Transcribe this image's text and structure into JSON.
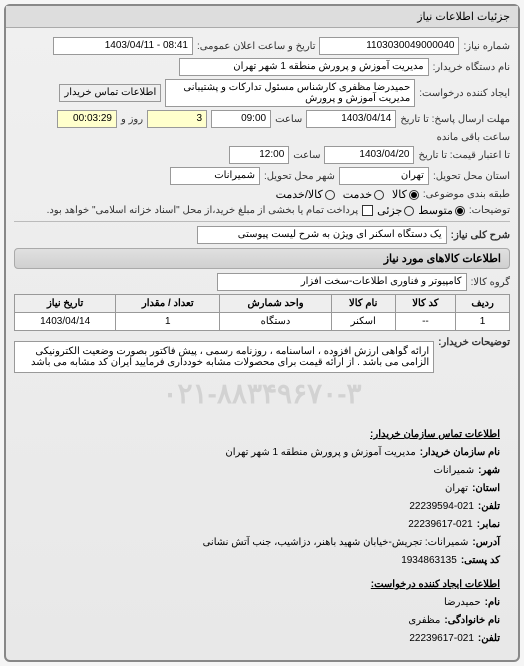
{
  "tabHeader": "جزئیات اطلاعات نیاز",
  "requestNumber": {
    "label": "شماره نیاز:",
    "value": "1103030049000040"
  },
  "announceDateTime": {
    "label": "تاریخ و ساعت اعلان عمومی:",
    "value": "08:41 - 1403/04/11"
  },
  "buyerOrg": {
    "label": "نام دستگاه خریدار:",
    "value": "مدیریت آموزش و پرورش منطقه 1 شهر تهران"
  },
  "requester": {
    "label": "ایجاد کننده درخواست:",
    "value": "حمیدرضا مظفری کارشناس مسئول تدارکات و پشتیبانی مدیریت آموزش و پرورش"
  },
  "contactBtn": "اطلاعات تماس خریدار",
  "deadlineSend": {
    "label": "مهلت ارسال پاسخ: تا تاریخ",
    "date": "1403/04/14",
    "timeLabel": "ساعت",
    "time": "09:00",
    "daysLabel": "روز و",
    "days": "3",
    "remLabel": "ساعت باقی مانده",
    "rem": "00:03:29"
  },
  "deadlineValid": {
    "label": "تا اعتبار قیمت: تا تاریخ",
    "date": "1403/04/20",
    "timeLabel": "ساعت",
    "time": "12:00"
  },
  "deliverLoc": {
    "label": "استان محل تحویل:",
    "value": "تهران"
  },
  "deliverCity": {
    "label": "شهر محل تحویل:",
    "value": "شمیرانات"
  },
  "budgetType": {
    "label": "طبقه بندی موضوعی:",
    "options": [
      "کالا",
      "خدمت",
      "کالا/خدمت"
    ],
    "selected": 0
  },
  "paymentNote": {
    "label": "توضیحات:",
    "chkLabel": "پرداخت تمام یا بخشی از مبلغ خرید،از محل \"اسناد خزانه اسلامی\" خواهد بود.",
    "radios": [
      "متوسط",
      "جزئی"
    ],
    "selected": 0
  },
  "needTitle": {
    "label": "شرح کلی نیاز:",
    "value": "یک دستگاه اسکنر ای ویژن به شرح لیست پیوستی"
  },
  "goodsInfoTitle": "اطلاعات کالاهای مورد نیاز",
  "goodsGroup": {
    "label": "گروه کالا:",
    "value": "کامپیوتر و فناوری اطلاعات-سخت افزار"
  },
  "table": {
    "headers": [
      "ردیف",
      "کد کالا",
      "نام کالا",
      "واحد شمارش",
      "تعداد / مقدار",
      "تاریخ نیاز"
    ],
    "rows": [
      [
        "1",
        "--",
        "اسکنر",
        "دستگاه",
        "1",
        "1403/04/14"
      ]
    ]
  },
  "buyerNote": {
    "label": "توضیحات خریدار:",
    "value": "ارائه گواهی ارزش افزوده ، اساسنامه ، روزنامه رسمی ، پیش فاکتور بصورت وضعیت الکترونیکی الزامی می باشد . از ارائه قیمت برای محصولات مشابه خودداری فرمایید ایران کد مشابه می باشد"
  },
  "phoneBg": "۰۲۱-۸۸۳۴۹۶۷۰-۳",
  "contactOrgTitle": "اطلاعات تماس سازمان خریدار:",
  "contactOrg": [
    {
      "k": "نام سازمان خریدار:",
      "v": "مدیریت آموزش و پرورش منطقه 1 شهر تهران"
    },
    {
      "k": "شهر:",
      "v": "شمیرانات"
    },
    {
      "k": "استان:",
      "v": "تهران"
    },
    {
      "k": "تلفن:",
      "v": "22239594-021"
    },
    {
      "k": "نمابر:",
      "v": "22239617-021"
    },
    {
      "k": "آدرس:",
      "v": "شمیرانات: تجریش-خیابان شهید باهنر، دزاشیب، جنب آتش نشانی"
    },
    {
      "k": "کد پستی:",
      "v": "1934863135"
    }
  ],
  "contactReqTitle": "اطلاعات ایجاد کننده درخواست:",
  "contactReq": [
    {
      "k": "نام:",
      "v": "حمیدرضا"
    },
    {
      "k": "نام خانوادگی:",
      "v": "مظفری"
    },
    {
      "k": "تلفن:",
      "v": "22239617-021"
    }
  ]
}
